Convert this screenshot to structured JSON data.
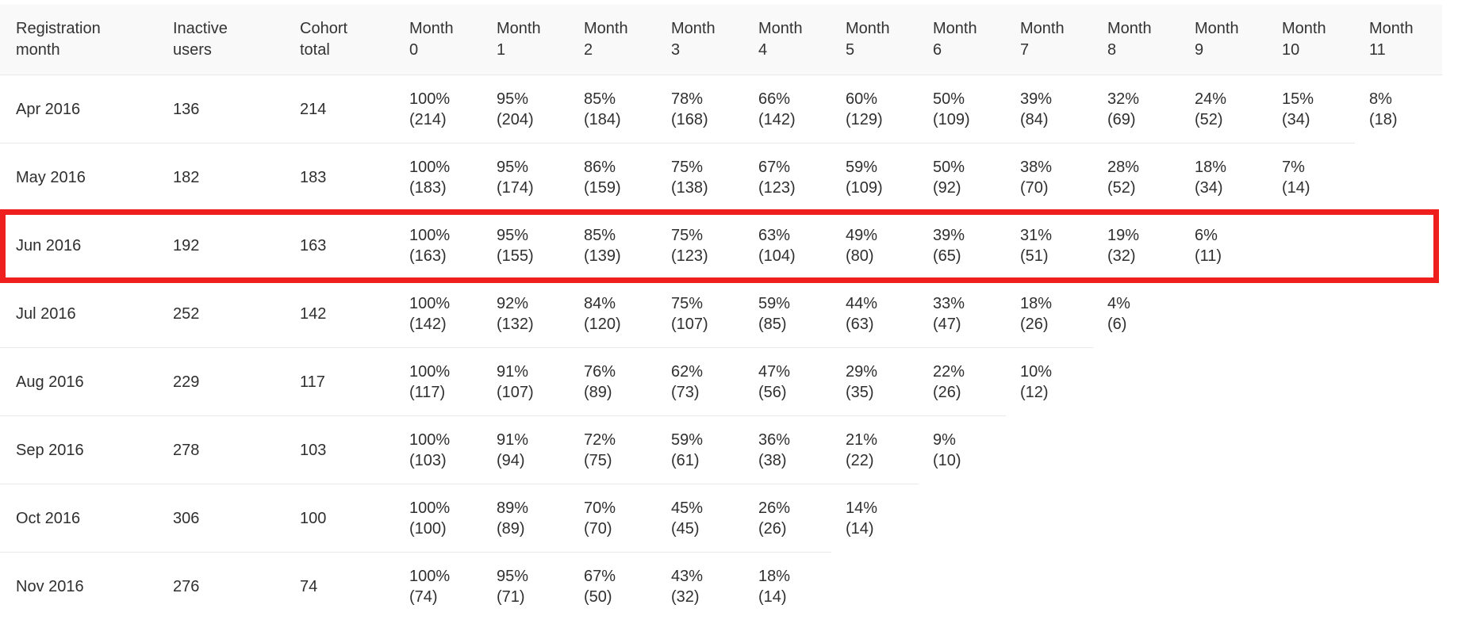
{
  "colors": {
    "highlight_border": "#ee1f1c",
    "header_background": "#f9f9f9",
    "row_divider": "#e9e9e9",
    "text": "#2f2f2f"
  },
  "chart_data": {
    "type": "table",
    "columns": [
      "Registration month",
      "Inactive users",
      "Cohort total",
      "Month 0",
      "Month 1",
      "Month 2",
      "Month 3",
      "Month 4",
      "Month 5",
      "Month 6",
      "Month 7",
      "Month 8",
      "Month 9",
      "Month 10",
      "Month 11"
    ],
    "highlighted_row": "Jun 2016",
    "rows": [
      {
        "registration_month": "Apr 2016",
        "inactive_users": 136,
        "cohort_total": 214,
        "retention_pct": [
          100,
          95,
          85,
          78,
          66,
          60,
          50,
          39,
          32,
          24,
          15,
          8
        ],
        "retention_count": [
          214,
          204,
          184,
          168,
          142,
          129,
          109,
          84,
          69,
          52,
          34,
          18
        ]
      },
      {
        "registration_month": "May 2016",
        "inactive_users": 182,
        "cohort_total": 183,
        "retention_pct": [
          100,
          95,
          86,
          75,
          67,
          59,
          50,
          38,
          28,
          18,
          7
        ],
        "retention_count": [
          183,
          174,
          159,
          138,
          123,
          109,
          92,
          70,
          52,
          34,
          14
        ]
      },
      {
        "registration_month": "Jun 2016",
        "inactive_users": 192,
        "cohort_total": 163,
        "retention_pct": [
          100,
          95,
          85,
          75,
          63,
          49,
          39,
          31,
          19,
          6
        ],
        "retention_count": [
          163,
          155,
          139,
          123,
          104,
          80,
          65,
          51,
          32,
          11
        ]
      },
      {
        "registration_month": "Jul 2016",
        "inactive_users": 252,
        "cohort_total": 142,
        "retention_pct": [
          100,
          92,
          84,
          75,
          59,
          44,
          33,
          18,
          4
        ],
        "retention_count": [
          142,
          132,
          120,
          107,
          85,
          63,
          47,
          26,
          6
        ]
      },
      {
        "registration_month": "Aug 2016",
        "inactive_users": 229,
        "cohort_total": 117,
        "retention_pct": [
          100,
          91,
          76,
          62,
          47,
          29,
          22,
          10
        ],
        "retention_count": [
          117,
          107,
          89,
          73,
          56,
          35,
          26,
          12
        ]
      },
      {
        "registration_month": "Sep 2016",
        "inactive_users": 278,
        "cohort_total": 103,
        "retention_pct": [
          100,
          91,
          72,
          59,
          36,
          21,
          9
        ],
        "retention_count": [
          103,
          94,
          75,
          61,
          38,
          22,
          10
        ]
      },
      {
        "registration_month": "Oct 2016",
        "inactive_users": 306,
        "cohort_total": 100,
        "retention_pct": [
          100,
          89,
          70,
          45,
          26,
          14
        ],
        "retention_count": [
          100,
          89,
          70,
          45,
          26,
          14
        ]
      },
      {
        "registration_month": "Nov 2016",
        "inactive_users": 276,
        "cohort_total": 74,
        "retention_pct": [
          100,
          95,
          67,
          43,
          18
        ],
        "retention_count": [
          74,
          71,
          50,
          32,
          14
        ]
      }
    ]
  }
}
